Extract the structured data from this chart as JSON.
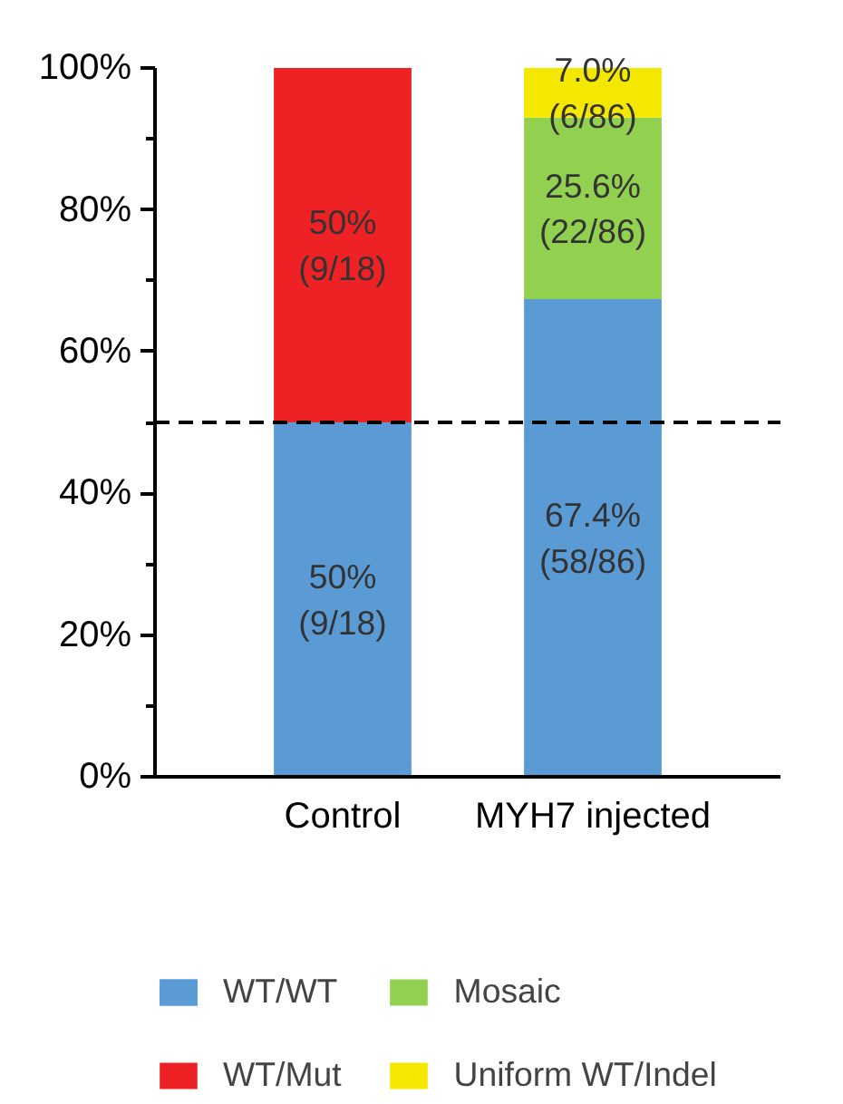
{
  "chart_data": {
    "type": "bar",
    "stacked": true,
    "categories": [
      "Control",
      "MYH7 injected"
    ],
    "series": [
      {
        "name": "WT/WT",
        "color": "#5b9bd5",
        "values": [
          50,
          67.4
        ],
        "value_labels": [
          "50%\n(9/18)",
          "67.4%\n(58/86)"
        ]
      },
      {
        "name": "WT/Mut",
        "color": "#ee2224",
        "values": [
          50,
          null
        ],
        "value_labels": [
          "50%\n(9/18)",
          null
        ]
      },
      {
        "name": "Mosaic",
        "color": "#92d050",
        "values": [
          null,
          25.6
        ],
        "value_labels": [
          null,
          "25.6%\n(22/86)"
        ]
      },
      {
        "name": "Uniform WT/Indel",
        "color": "#f5e800",
        "values": [
          null,
          7.0
        ],
        "value_labels": [
          null,
          "7.0%\n(6/86)"
        ]
      }
    ],
    "ylim": [
      0,
      100
    ],
    "yticks": [
      {
        "value": 0,
        "label": "0%"
      },
      {
        "value": 10,
        "label": null
      },
      {
        "value": 20,
        "label": "20%"
      },
      {
        "value": 30,
        "label": null
      },
      {
        "value": 40,
        "label": "40%"
      },
      {
        "value": 50,
        "label": null
      },
      {
        "value": 60,
        "label": "60%"
      },
      {
        "value": 70,
        "label": null
      },
      {
        "value": 80,
        "label": "80%"
      },
      {
        "value": 90,
        "label": null
      },
      {
        "value": 100,
        "label": "100%"
      }
    ],
    "ref_lines": [
      {
        "axis": "y",
        "value": 50,
        "label": null,
        "color": "#000000",
        "line_style": "dashed"
      }
    ],
    "grid": false,
    "legend": "bottom"
  }
}
